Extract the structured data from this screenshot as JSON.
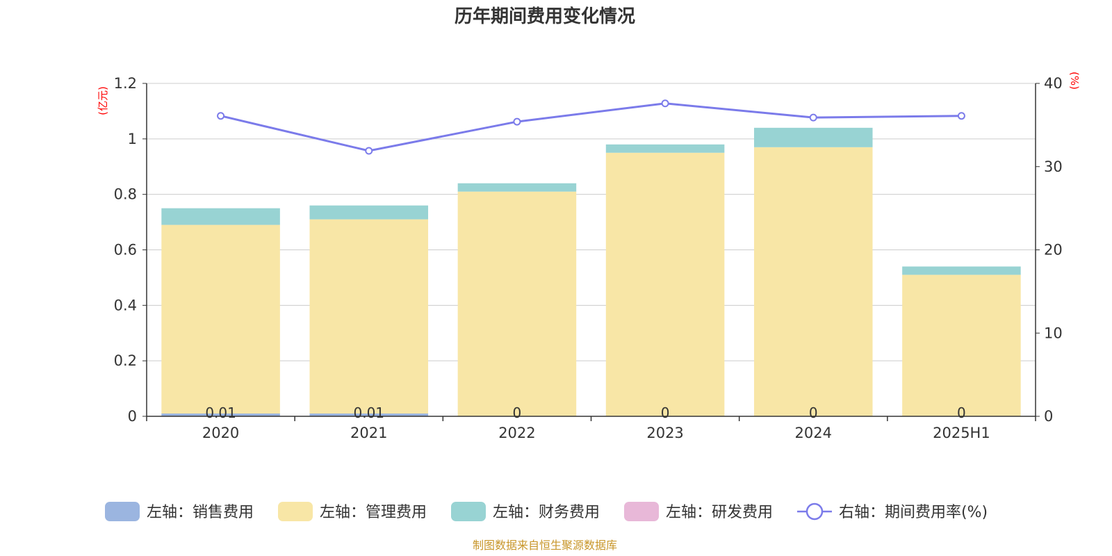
{
  "chart_data": {
    "type": "bar",
    "title": "历年期间费用变化情况",
    "categories": [
      "2020",
      "2021",
      "2022",
      "2023",
      "2024",
      "2025H1"
    ],
    "stacked": true,
    "left_axis": {
      "unit": "(亿元)",
      "ylim": [
        0,
        1.2
      ],
      "ticks": [
        "0",
        "0.2",
        "0.4",
        "0.6",
        "0.8",
        "1",
        "1.2"
      ],
      "tick_values": [
        0,
        0.2,
        0.4,
        0.6,
        0.8,
        1.0,
        1.2
      ]
    },
    "right_axis": {
      "unit": "(%)",
      "ylim": [
        0,
        40
      ],
      "ticks": [
        "0",
        "10",
        "20",
        "30",
        "40"
      ],
      "tick_values": [
        0,
        10,
        20,
        30,
        40
      ]
    },
    "series": [
      {
        "name": "左轴：销售费用",
        "axis": "left",
        "type": "bar",
        "color": "#9bb5e0",
        "values": [
          0.01,
          0.01,
          0,
          0,
          0,
          0
        ],
        "data_labels": [
          "0.01",
          "0.01",
          "0",
          "0",
          "0",
          "0"
        ]
      },
      {
        "name": "左轴：管理费用",
        "axis": "left",
        "type": "bar",
        "color": "#f8e6a6",
        "values": [
          0.68,
          0.7,
          0.81,
          0.95,
          0.97,
          0.51
        ]
      },
      {
        "name": "左轴：财务费用",
        "axis": "left",
        "type": "bar",
        "color": "#98d3d3",
        "values": [
          0.06,
          0.05,
          0.03,
          0.03,
          0.07,
          0.03
        ]
      },
      {
        "name": "左轴：研发费用",
        "axis": "left",
        "type": "bar",
        "color": "#e8b8d8",
        "values": [
          0,
          0,
          0,
          0,
          0,
          0
        ]
      },
      {
        "name": "右轴：期间费用率(%)",
        "axis": "right",
        "type": "line",
        "color": "#7b7bea",
        "values": [
          36.1,
          31.9,
          35.4,
          37.6,
          35.9,
          36.1
        ]
      }
    ],
    "grid": true,
    "legend_position": "bottom"
  },
  "footer": {
    "source": "制图数据来自恒生聚源数据库",
    "source_color": "#c8962a"
  }
}
